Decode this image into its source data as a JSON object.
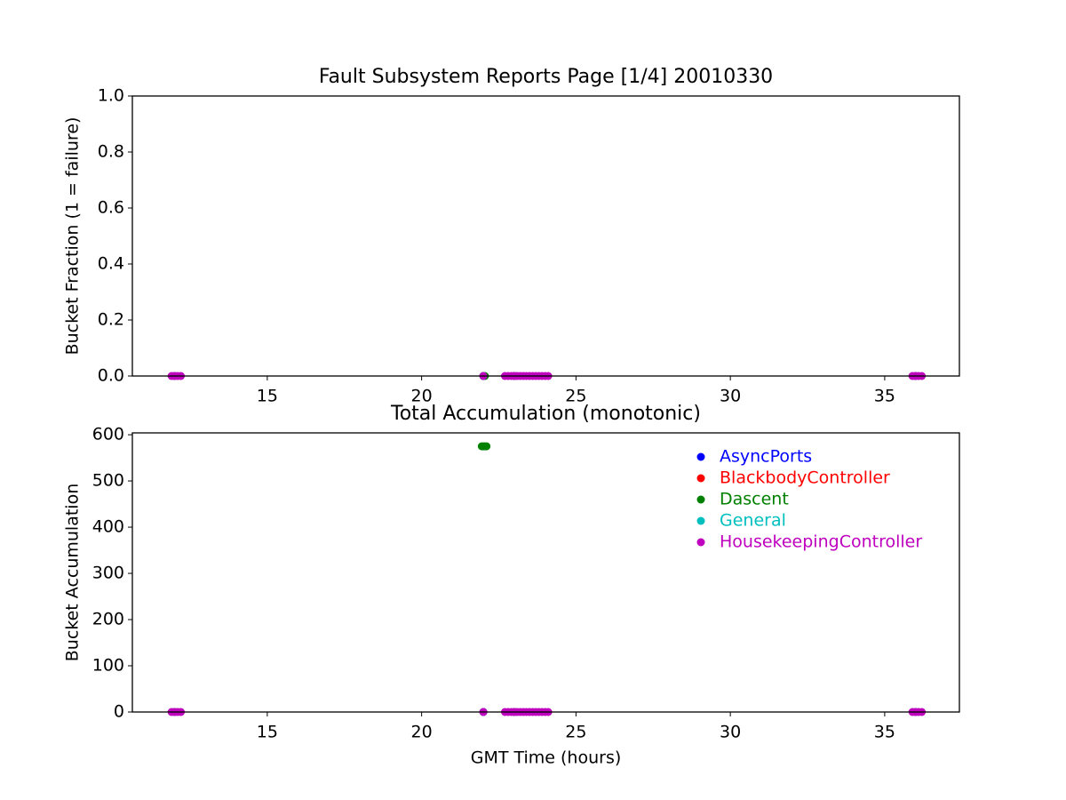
{
  "chart_data": [
    {
      "type": "scatter",
      "title": "Fault Subsystem Reports Page [1/4] 20010330",
      "ylabel": "Bucket Fraction (1 = failure)",
      "xlim": [
        10.63,
        37.42
      ],
      "xticks": [
        15,
        20,
        25,
        30,
        35
      ],
      "ylim": [
        0,
        1
      ],
      "yticks": [
        {
          "value": 0,
          "label": "0.0"
        },
        {
          "value": 0.2,
          "label": "0.2"
        },
        {
          "value": 0.4,
          "label": "0.4"
        },
        {
          "value": 0.6,
          "label": "0.6"
        },
        {
          "value": 0.8,
          "label": "0.8"
        },
        {
          "value": 1,
          "label": "1.0"
        }
      ],
      "series": [
        {
          "color": "#0000ff",
          "x": [
            12.0,
            22.0,
            23.0,
            36.0
          ],
          "values": [
            0,
            0,
            0,
            0
          ]
        },
        {
          "color": "#ff0000",
          "x": [
            12.0,
            22.0,
            23.0,
            36.0
          ],
          "values": [
            0,
            0,
            0,
            0
          ]
        },
        {
          "color": "#008000",
          "x": [
            22.0,
            22.05
          ],
          "values": [
            0,
            0
          ]
        },
        {
          "color": "#00bfbf",
          "x": [
            12.0,
            22.0,
            23.0,
            36.0
          ],
          "values": [
            0,
            0,
            0,
            0
          ]
        },
        {
          "color": "#bf00bf",
          "x": [
            11.9,
            12.0,
            12.1,
            12.2,
            22.0,
            22.7,
            22.8,
            22.9,
            23.0,
            23.1,
            23.2,
            23.3,
            23.4,
            23.5,
            23.6,
            23.7,
            23.8,
            23.9,
            24.0,
            24.1,
            35.9,
            36.0,
            36.1,
            36.2
          ],
          "values": [
            0,
            0,
            0,
            0,
            0,
            0,
            0,
            0,
            0,
            0,
            0,
            0,
            0,
            0,
            0,
            0,
            0,
            0,
            0,
            0,
            0,
            0,
            0,
            0
          ]
        }
      ]
    },
    {
      "type": "scatter",
      "title": "Total Accumulation (monotonic)",
      "ylabel": "Bucket Accumulation",
      "xlabel": "GMT Time (hours)",
      "xlim": [
        10.63,
        37.42
      ],
      "xticks": [
        15,
        20,
        25,
        30,
        35
      ],
      "ylim": [
        0,
        604
      ],
      "yticks": [
        0,
        100,
        200,
        300,
        400,
        500,
        600
      ],
      "legend": "upper right",
      "series": [
        {
          "name": "AsyncPorts",
          "color": "#0000ff",
          "x": [
            12.0,
            22.0,
            23.0,
            36.0
          ],
          "values": [
            0,
            0,
            0,
            0
          ]
        },
        {
          "name": "BlackbodyController",
          "color": "#ff0000",
          "x": [
            12.0,
            22.0,
            23.0,
            36.0
          ],
          "values": [
            0,
            0,
            0,
            0
          ]
        },
        {
          "name": "Dascent",
          "color": "#008000",
          "x": [
            21.95,
            22.0,
            22.05,
            22.1
          ],
          "values": [
            575,
            575,
            575,
            575
          ]
        },
        {
          "name": "General",
          "color": "#00bfbf",
          "x": [
            12.0,
            22.0,
            23.0,
            36.0
          ],
          "values": [
            0,
            0,
            0,
            0
          ]
        },
        {
          "name": "HousekeepingController",
          "color": "#bf00bf",
          "x": [
            11.9,
            12.0,
            12.1,
            12.2,
            22.0,
            22.7,
            22.8,
            22.9,
            23.0,
            23.1,
            23.2,
            23.3,
            23.4,
            23.5,
            23.6,
            23.7,
            23.8,
            23.9,
            24.0,
            24.1,
            35.9,
            36.0,
            36.1,
            36.2
          ],
          "values": [
            0,
            0,
            0,
            0,
            0,
            0,
            0,
            0,
            0,
            0,
            0,
            0,
            0,
            0,
            0,
            0,
            0,
            0,
            0,
            0,
            0,
            0,
            0,
            0
          ]
        }
      ]
    }
  ]
}
